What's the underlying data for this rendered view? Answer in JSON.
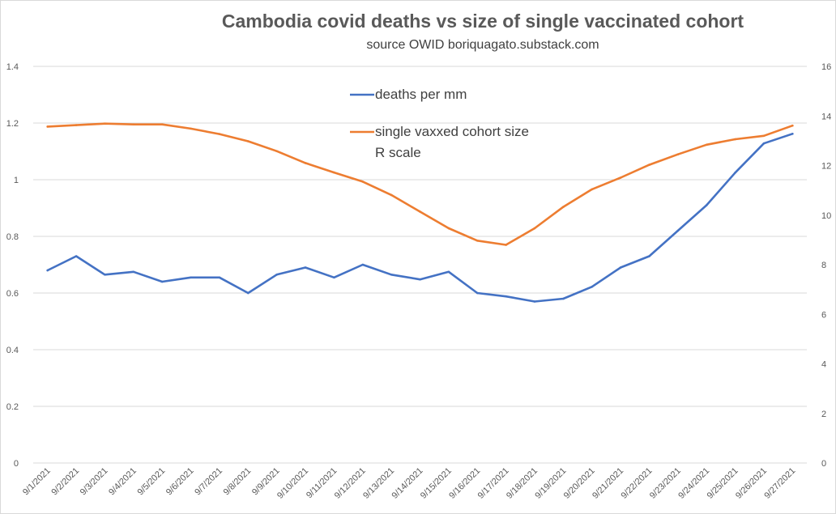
{
  "chart_data": {
    "type": "line",
    "title": "Cambodia covid deaths vs size of single vaccinated cohort",
    "subtitle": "source OWID boriquagato.substack.com",
    "x": [
      "9/1/2021",
      "9/2/2021",
      "9/3/2021",
      "9/4/2021",
      "9/5/2021",
      "9/6/2021",
      "9/7/2021",
      "9/8/2021",
      "9/9/2021",
      "9/10/2021",
      "9/11/2021",
      "9/12/2021",
      "9/13/2021",
      "9/14/2021",
      "9/15/2021",
      "9/16/2021",
      "9/17/2021",
      "9/18/2021",
      "9/19/2021",
      "9/20/2021",
      "9/21/2021",
      "9/22/2021",
      "9/23/2021",
      "9/24/2021",
      "9/25/2021",
      "9/26/2021",
      "9/27/2021"
    ],
    "y_left": {
      "ylim": [
        0,
        1.4
      ],
      "ticks": [
        "0",
        "0.2",
        "0.4",
        "0.6",
        "0.8",
        "1",
        "1.2",
        "1.4"
      ]
    },
    "y_right": {
      "ylim": [
        0,
        16
      ],
      "ticks": [
        "0",
        "2",
        "4",
        "6",
        "8",
        "10",
        "12",
        "14",
        "16"
      ]
    },
    "grid": true,
    "legend_position": "top-center",
    "series": [
      {
        "name": "deaths per mm",
        "axis": "left",
        "color": "#4472c4",
        "values": [
          0.68,
          0.73,
          0.665,
          0.675,
          0.64,
          0.655,
          0.655,
          0.6,
          0.665,
          0.69,
          0.655,
          0.7,
          0.665,
          0.648,
          0.675,
          0.6,
          0.588,
          0.57,
          0.58,
          0.622,
          0.69,
          0.73,
          0.82,
          0.91,
          1.025,
          1.128,
          1.162
        ]
      },
      {
        "name": "single vaxxed cohort size",
        "axis": "right",
        "color": "#ed7d31",
        "values": [
          13.57,
          13.63,
          13.69,
          13.66,
          13.66,
          13.49,
          13.27,
          12.98,
          12.58,
          12.1,
          11.72,
          11.35,
          10.81,
          10.14,
          9.47,
          8.97,
          8.8,
          9.47,
          10.33,
          11.04,
          11.51,
          12.03,
          12.45,
          12.84,
          13.06,
          13.2,
          13.61
        ]
      }
    ],
    "legend_note": "R scale"
  }
}
